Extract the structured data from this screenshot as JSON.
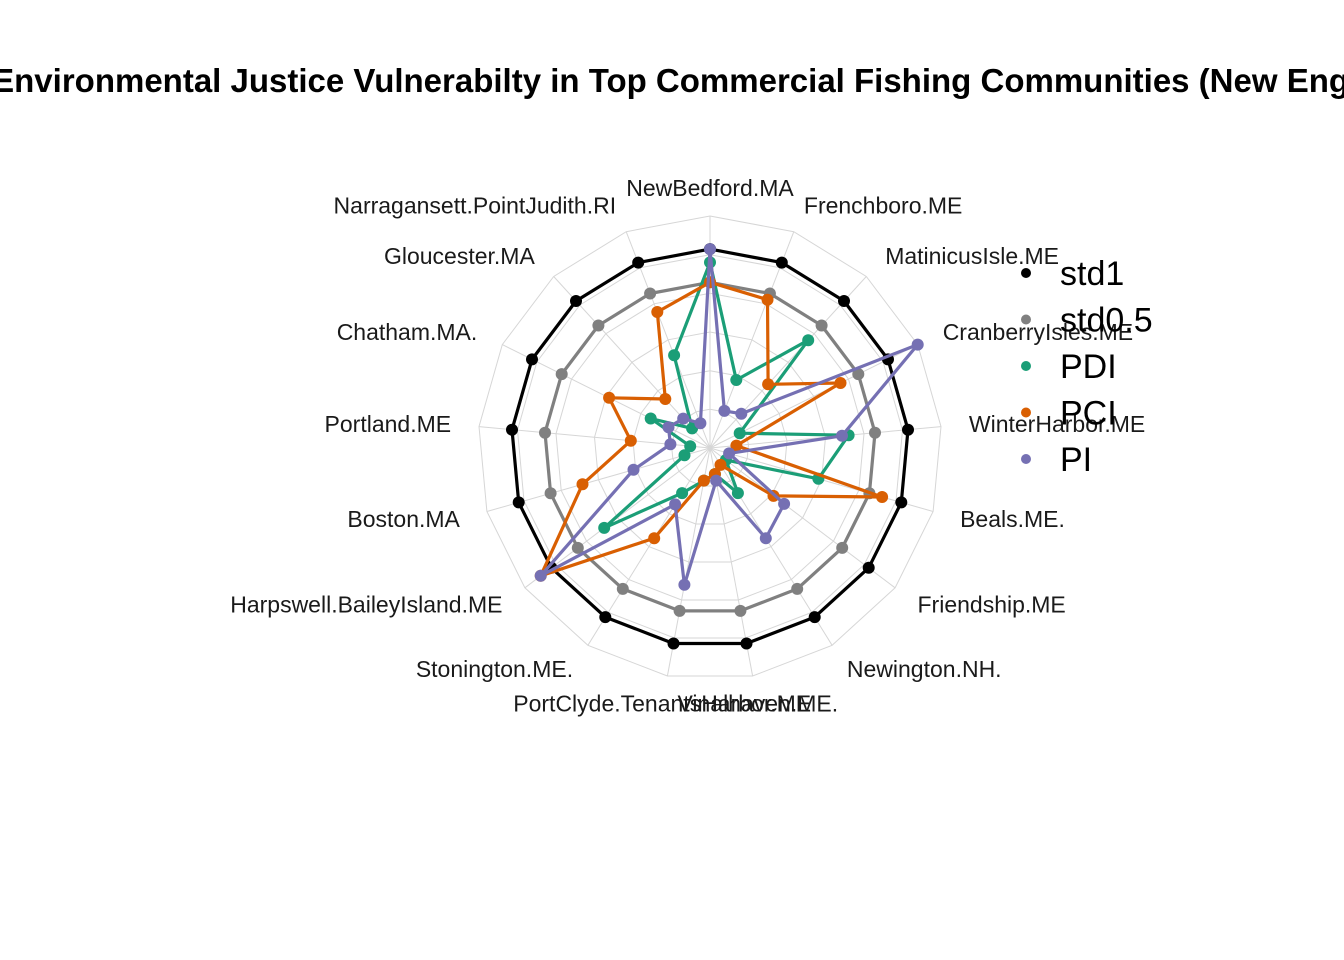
{
  "chart_data": {
    "type": "radar",
    "title": "Environmental Justice Vulnerabilty in Top Commercial Fishing Communities (New England)",
    "axes": [
      "NewBedford.MA",
      "Frenchboro.ME",
      "MatinicusIsle.ME",
      "CranberryIsles.ME",
      "WinterHarbor.ME",
      "Beals.ME.",
      "Friendship.ME",
      "Newington.NH.",
      "Vinalhaven.ME.",
      "PortClyde.TenantsHarbor.ME",
      "Stonington.ME.",
      "Harpswell.BaileyIsland.ME",
      "Boston.MA",
      "Portland.ME",
      "Chatham.MA.",
      "Gloucester.MA",
      "Narragansett.PointJudith.RI"
    ],
    "rlim": [
      -2,
      1.5
    ],
    "grid_rings": 6,
    "legend_position": "right",
    "series": [
      {
        "name": "std1",
        "color": "#000000",
        "values": [
          1,
          1,
          1,
          1,
          1,
          1,
          1,
          1,
          1,
          1,
          1,
          1,
          1,
          1,
          1,
          1,
          1
        ]
      },
      {
        "name": "std0.5",
        "color": "#808080",
        "values": [
          0.5,
          0.5,
          0.5,
          0.5,
          0.5,
          0.5,
          0.5,
          0.5,
          0.5,
          0.5,
          0.5,
          0.5,
          0.5,
          0.5,
          0.5,
          0.5,
          0.5
        ]
      },
      {
        "name": "PDI",
        "color": "#1B9E77",
        "values": [
          0.8,
          -0.9,
          0.2,
          -1.5,
          0.1,
          -0.3,
          -1.7,
          -1.2,
          -1.6,
          -1.5,
          -1.2,
          0.0,
          -1.6,
          -1.7,
          -1.0,
          -1.6,
          -0.5
        ]
      },
      {
        "name": "PCI",
        "color": "#D95F02",
        "values": [
          0.5,
          0.4,
          -0.7,
          0.2,
          -1.6,
          0.7,
          -0.8,
          -1.7,
          -1.6,
          -1.5,
          -0.4,
          1.2,
          0.0,
          -0.8,
          -0.3,
          -1.0,
          0.2
        ]
      },
      {
        "name": "PI",
        "color": "#7570B3",
        "values": [
          1.0,
          -1.4,
          -1.3,
          1.5,
          0.0,
          -1.7,
          -0.6,
          -0.4,
          -1.5,
          0.1,
          -1.0,
          1.2,
          -0.8,
          -1.4,
          -1.3,
          -1.4,
          -1.6
        ]
      }
    ]
  }
}
